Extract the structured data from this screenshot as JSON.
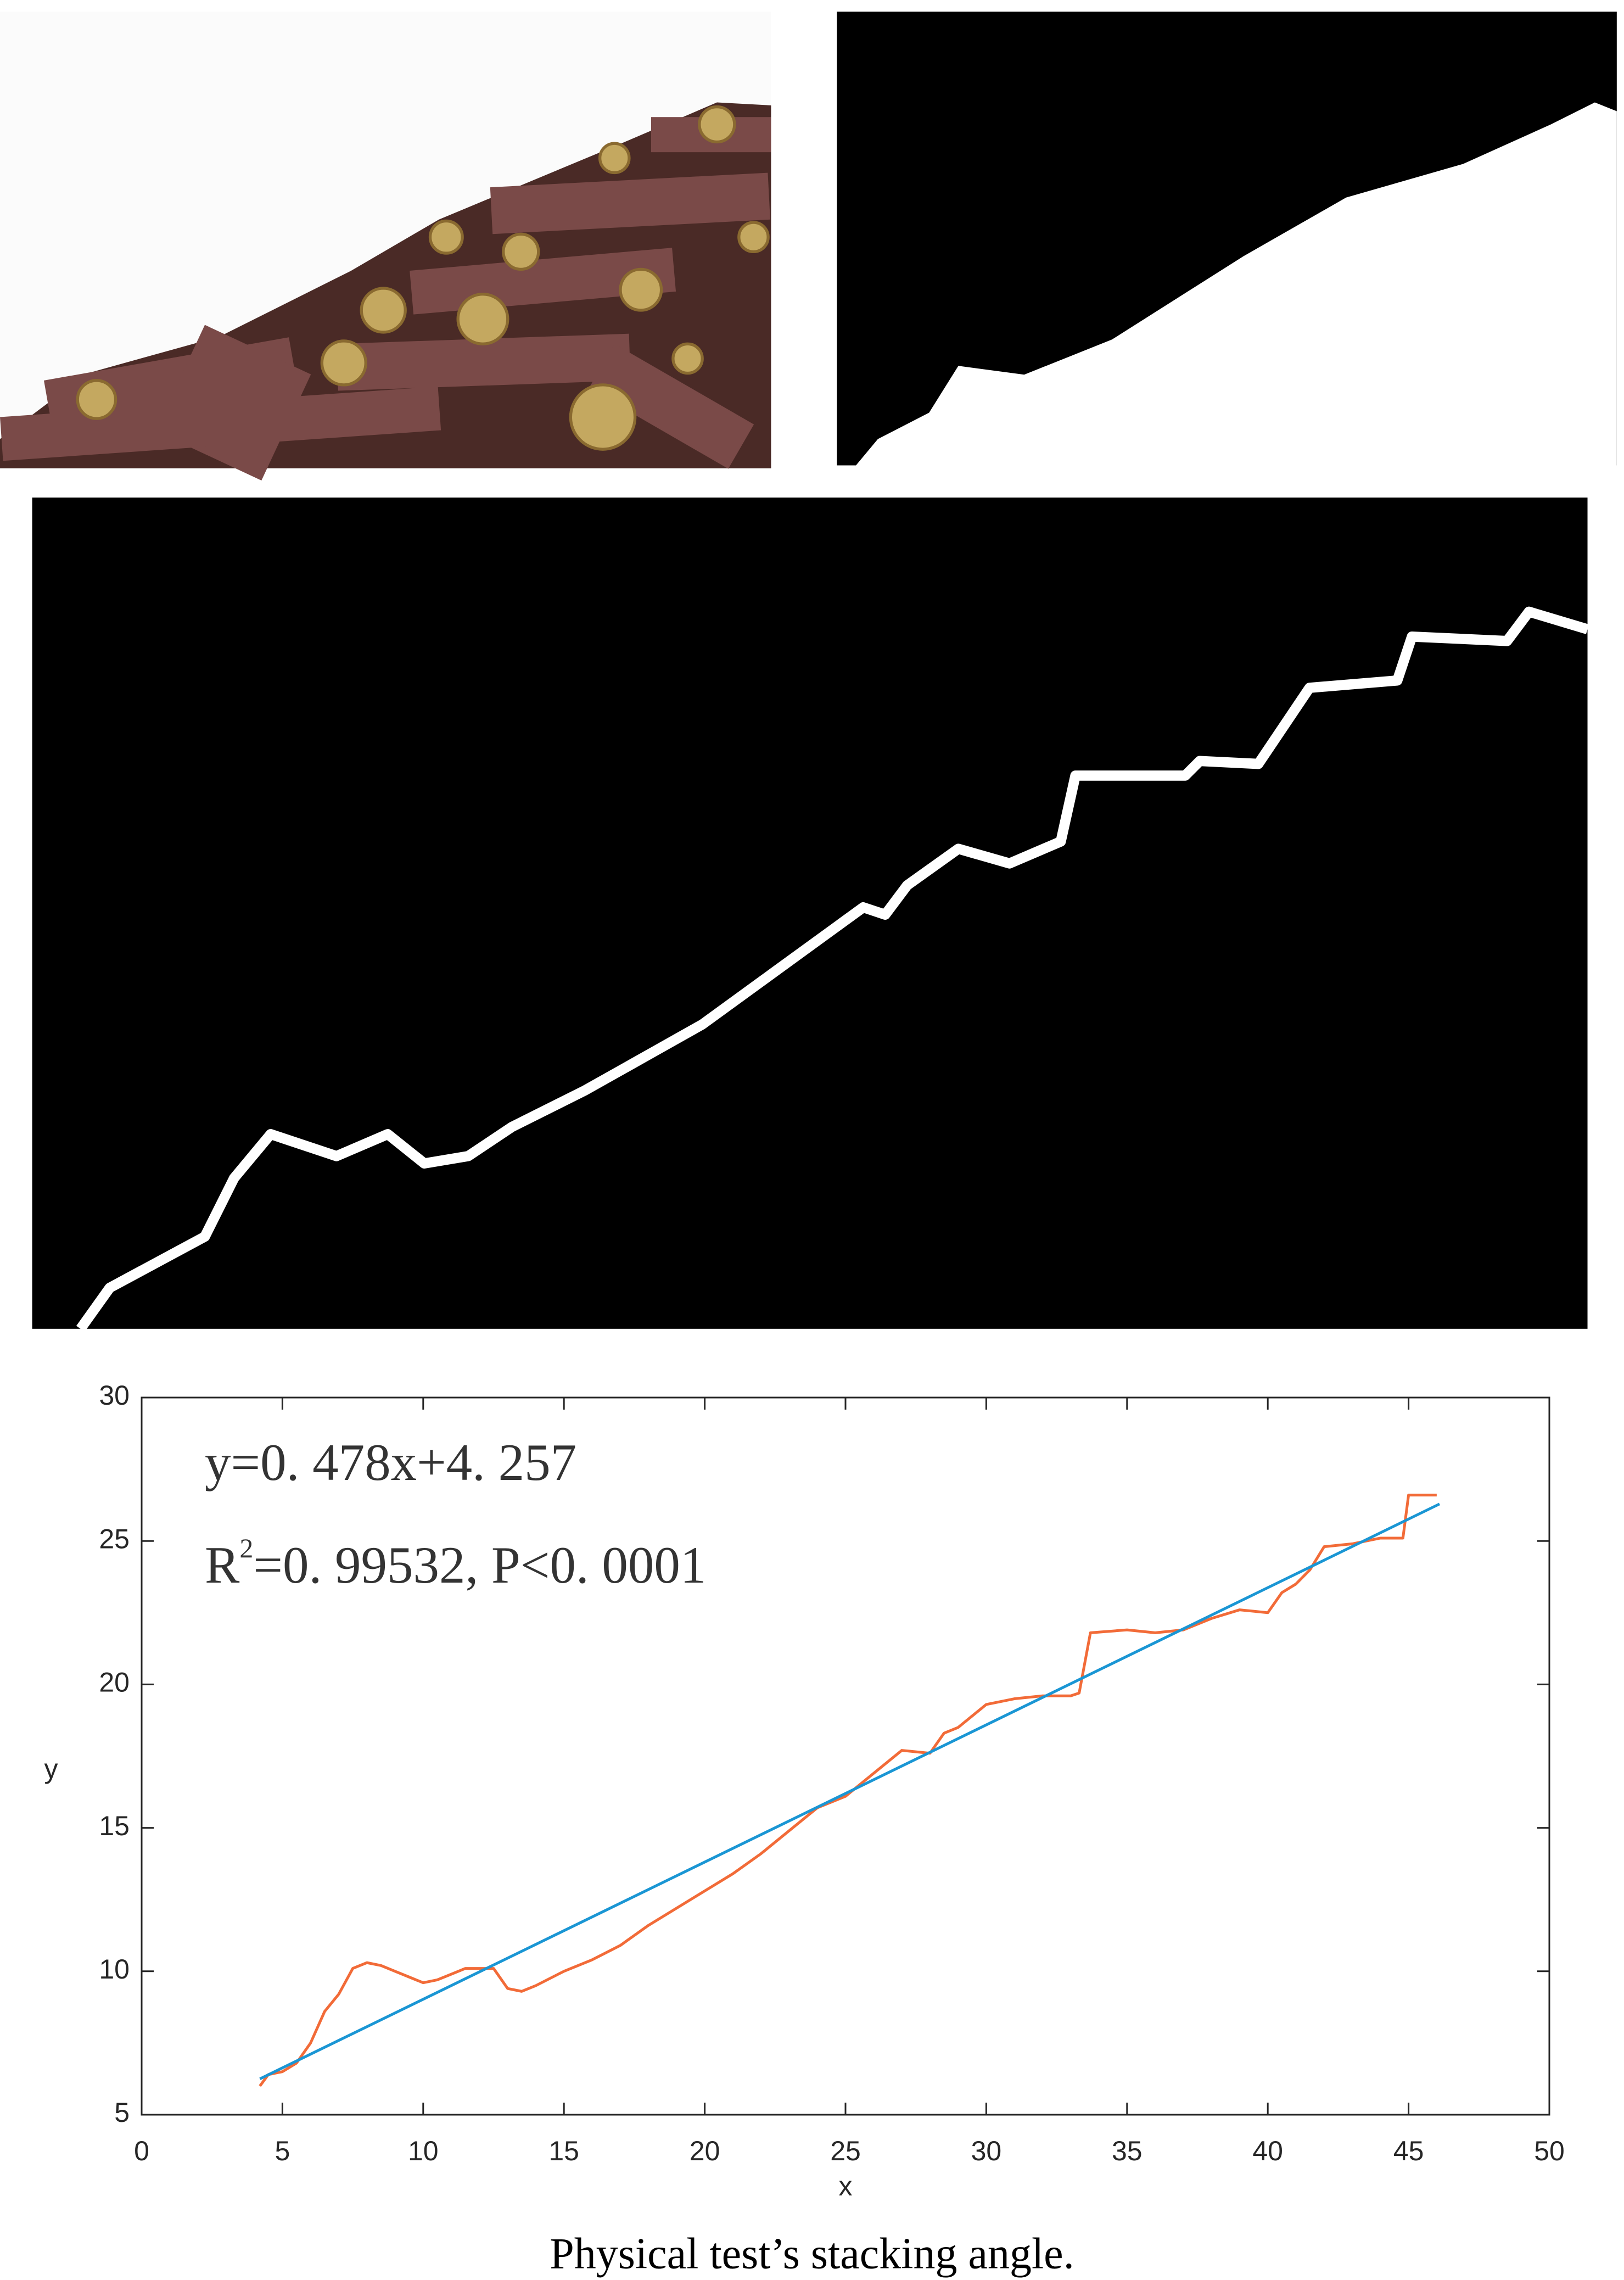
{
  "chart_data": {
    "type": "line",
    "equation": "y=0. 478x+4. 257",
    "r2": {
      "base": "R",
      "sup": "2",
      "text": "=0. 99532,  P<0. 0001"
    },
    "x_label": "x",
    "y_label": "y",
    "xlim": [
      0,
      50
    ],
    "ylim": [
      5,
      30
    ],
    "xticks": [
      0,
      5,
      10,
      15,
      20,
      25,
      30,
      35,
      40,
      45,
      50
    ],
    "yticks": [
      5,
      10,
      15,
      20,
      25,
      30
    ],
    "grid": false,
    "series": [
      {
        "color": "#f26b38",
        "x": [
          4.2,
          4.5,
          5,
          5.5,
          6,
          6.5,
          7,
          7.5,
          8,
          8.5,
          9,
          9.5,
          10,
          10.5,
          11,
          11.5,
          12,
          12.5,
          13,
          13.5,
          14,
          15,
          16,
          17,
          18,
          19,
          20,
          21,
          22,
          23,
          24,
          25,
          26,
          27,
          28,
          28.5,
          29,
          30,
          31,
          32,
          33,
          33.3,
          33.7,
          35,
          36,
          37,
          38,
          39,
          40,
          40.5,
          41,
          41.5,
          42,
          43,
          44,
          44.8,
          45,
          46
        ],
        "values": [
          6.0,
          6.4,
          6.5,
          6.8,
          7.5,
          8.6,
          9.2,
          10.1,
          10.3,
          10.2,
          10.0,
          9.8,
          9.6,
          9.7,
          9.9,
          10.1,
          10.1,
          10.1,
          9.4,
          9.3,
          9.5,
          10.0,
          10.4,
          10.9,
          11.6,
          12.2,
          12.8,
          13.4,
          14.1,
          14.9,
          15.7,
          16.1,
          16.9,
          17.7,
          17.6,
          18.3,
          18.5,
          19.3,
          19.5,
          19.6,
          19.6,
          19.7,
          21.8,
          21.9,
          21.8,
          21.9,
          22.3,
          22.6,
          22.5,
          23.2,
          23.5,
          24.0,
          24.8,
          24.9,
          25.1,
          25.1,
          26.6,
          26.6
        ]
      },
      {
        "color": "#1a96d4",
        "x": [
          4.2,
          46.1
        ],
        "values": [
          6.25,
          26.29
        ]
      }
    ]
  },
  "caption": "Physical test’s stacking angle."
}
